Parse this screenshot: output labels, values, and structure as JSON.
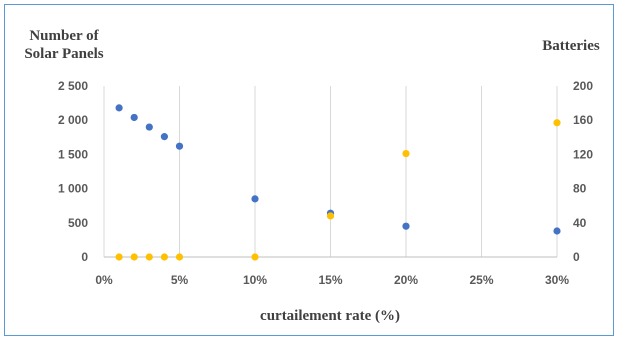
{
  "chart_data": {
    "type": "scatter",
    "xlabel": "curtailement rate (%)",
    "ylabel_left": [
      "Number of",
      "Solar Panels"
    ],
    "ylabel_right": "Batteries",
    "x_ticks": [
      "0%",
      "5%",
      "10%",
      "15%",
      "20%",
      "25%",
      "30%"
    ],
    "y_left_ticks": [
      "0",
      "500",
      "1 000",
      "1 500",
      "2 000",
      "2 500"
    ],
    "y_right_ticks": [
      "0",
      "40",
      "80",
      "120",
      "160",
      "200"
    ],
    "xlim": [
      0,
      30
    ],
    "ylim_left": [
      0,
      2500
    ],
    "ylim_right": [
      0,
      200
    ],
    "grid": "vertical",
    "colors": {
      "solar_panels": "#4472c4",
      "batteries": "#ffc000"
    },
    "series": [
      {
        "axis": "left",
        "color": "#4472c4",
        "x": [
          1,
          2,
          3,
          4,
          5,
          10,
          15,
          20,
          30
        ],
        "values": [
          2180,
          2040,
          1900,
          1760,
          1620,
          850,
          640,
          450,
          380
        ]
      },
      {
        "axis": "right",
        "color": "#ffc000",
        "x": [
          1,
          2,
          3,
          4,
          5,
          10,
          15,
          20,
          30
        ],
        "values": [
          0,
          0,
          0,
          0,
          0,
          0,
          48,
          121,
          157
        ]
      }
    ]
  }
}
